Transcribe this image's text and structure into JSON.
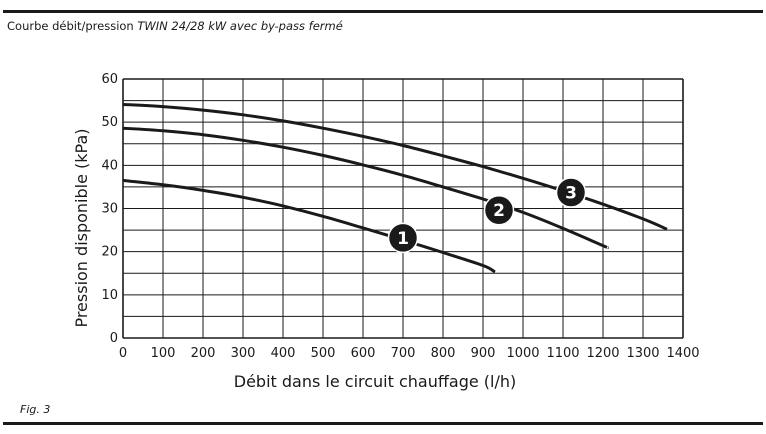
{
  "caption": {
    "lead": "Courbe débit/pression",
    "emphasis": "TWIN 24/28 kW avec by-pass fermé"
  },
  "figure_label": "Fig. 3",
  "chart_data": {
    "type": "line",
    "title": "Courbe débit/pression TWIN 24/28 kW avec by-pass fermé",
    "xlabel": "Débit dans le circuit chauffage (l/h)",
    "ylabel": "Pression disponible (kPa)",
    "xlim": [
      0,
      1400
    ],
    "ylim": [
      0,
      60
    ],
    "x_ticks": [
      0,
      100,
      200,
      300,
      400,
      500,
      600,
      700,
      800,
      900,
      1000,
      1100,
      1200,
      1300,
      1400
    ],
    "y_ticks": [
      0,
      10,
      20,
      30,
      40,
      50,
      60
    ],
    "grid_x_step": 100,
    "grid_y_step": 5,
    "grid": true,
    "line_color": "#1a1a1a",
    "series": [
      {
        "name": "1",
        "x": [
          0,
          100,
          200,
          300,
          400,
          500,
          600,
          700,
          800,
          900,
          930
        ],
        "y": [
          36.5,
          35.5,
          34.2,
          32.6,
          30.6,
          28.2,
          25.5,
          22.7,
          19.8,
          16.8,
          15.3
        ],
        "label_at": [
          700,
          23.2
        ]
      },
      {
        "name": "2",
        "x": [
          0,
          100,
          200,
          300,
          400,
          500,
          600,
          700,
          800,
          900,
          1000,
          1100,
          1200,
          1210
        ],
        "y": [
          48.6,
          48.0,
          47.1,
          45.8,
          44.2,
          42.3,
          40.1,
          37.7,
          35.0,
          32.2,
          29.1,
          25.4,
          21.4,
          21.0
        ],
        "label_at": [
          940,
          29.6
        ]
      },
      {
        "name": "3",
        "x": [
          0,
          100,
          200,
          300,
          400,
          500,
          600,
          700,
          800,
          900,
          1000,
          1100,
          1200,
          1300,
          1360
        ],
        "y": [
          54.1,
          53.6,
          52.8,
          51.7,
          50.3,
          48.6,
          46.7,
          44.6,
          42.2,
          39.7,
          37.0,
          34.1,
          31.0,
          27.6,
          25.2
        ],
        "label_at": [
          1120,
          33.7
        ]
      }
    ]
  }
}
